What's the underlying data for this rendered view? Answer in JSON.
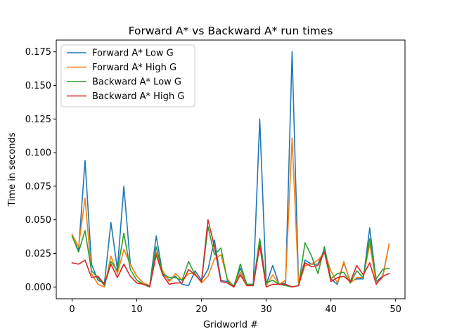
{
  "chart_data": {
    "type": "line",
    "title": "Forward A* vs Backward A* run times",
    "xlabel": "Gridworld #",
    "ylabel": "Time in seconds",
    "xlim": [
      -2.45,
      51.45
    ],
    "ylim": [
      -0.00875,
      0.18375
    ],
    "xticks": [
      0,
      10,
      20,
      30,
      40,
      50
    ],
    "xtick_labels": [
      "0",
      "10",
      "20",
      "30",
      "40",
      "50"
    ],
    "yticks": [
      0.0,
      0.025,
      0.05,
      0.075,
      0.1,
      0.125,
      0.15,
      0.175
    ],
    "ytick_labels": [
      "0.000",
      "0.025",
      "0.050",
      "0.075",
      "0.100",
      "0.125",
      "0.150",
      "0.175"
    ],
    "legend_position": "upper-left",
    "grid": false,
    "x": [
      0,
      1,
      2,
      3,
      4,
      5,
      6,
      7,
      8,
      9,
      10,
      11,
      12,
      13,
      14,
      15,
      16,
      17,
      18,
      19,
      20,
      21,
      22,
      23,
      24,
      25,
      26,
      27,
      28,
      29,
      30,
      31,
      32,
      33,
      34,
      35,
      36,
      37,
      38,
      39,
      40,
      41,
      42,
      43,
      44,
      45,
      46,
      47,
      48,
      49
    ],
    "series": [
      {
        "name": "Forward A* Low G",
        "color": "#1f77b4",
        "values": [
          0.038,
          0.027,
          0.094,
          0.017,
          0.005,
          0.003,
          0.048,
          0.013,
          0.075,
          0.017,
          0.008,
          0.003,
          0.001,
          0.038,
          0.01,
          0.005,
          0.008,
          0.002,
          0.001,
          0.012,
          0.005,
          0.013,
          0.035,
          0.005,
          0.004,
          0.001,
          0.014,
          0.002,
          0.002,
          0.125,
          0.002,
          0.016,
          0.002,
          0.003,
          0.175,
          0.002,
          0.02,
          0.017,
          0.017,
          0.028,
          0.006,
          0.002,
          0.018,
          0.004,
          0.006,
          0.006,
          0.044,
          0.004,
          0.008,
          0.032
        ]
      },
      {
        "name": "Forward A* High G",
        "color": "#ff7f0e",
        "values": [
          0.039,
          0.03,
          0.066,
          0.01,
          0.002,
          0.0,
          0.023,
          0.01,
          0.028,
          0.017,
          0.008,
          0.003,
          0.001,
          0.026,
          0.012,
          0.004,
          0.01,
          0.005,
          0.01,
          0.01,
          0.003,
          0.008,
          0.021,
          0.024,
          0.006,
          0.0,
          0.011,
          0.001,
          0.001,
          0.033,
          0.001,
          0.009,
          0.002,
          0.005,
          0.111,
          0.002,
          0.016,
          0.017,
          0.02,
          0.026,
          0.012,
          0.003,
          0.019,
          0.003,
          0.007,
          0.007,
          0.032,
          0.003,
          0.007,
          0.032
        ]
      },
      {
        "name": "Backward A* Low G",
        "color": "#2ca02c",
        "values": [
          0.038,
          0.026,
          0.042,
          0.012,
          0.007,
          0.001,
          0.019,
          0.012,
          0.04,
          0.013,
          0.005,
          0.002,
          0.001,
          0.03,
          0.01,
          0.007,
          0.007,
          0.005,
          0.019,
          0.009,
          0.004,
          0.045,
          0.024,
          0.029,
          0.005,
          0.0,
          0.017,
          0.002,
          0.002,
          0.036,
          0.003,
          0.005,
          0.002,
          0.001,
          0.0,
          0.001,
          0.033,
          0.023,
          0.01,
          0.03,
          0.006,
          0.01,
          0.011,
          0.003,
          0.012,
          0.007,
          0.036,
          0.006,
          0.013,
          0.014
        ]
      },
      {
        "name": "Backward A* High G",
        "color": "#d62728",
        "values": [
          0.018,
          0.017,
          0.02,
          0.007,
          0.008,
          0.002,
          0.017,
          0.007,
          0.017,
          0.008,
          0.003,
          0.002,
          0.0,
          0.024,
          0.009,
          0.002,
          0.003,
          0.003,
          0.013,
          0.009,
          0.004,
          0.05,
          0.03,
          0.004,
          0.003,
          0.0,
          0.009,
          0.001,
          0.001,
          0.031,
          0.0,
          0.002,
          0.002,
          0.002,
          0.0,
          0.001,
          0.018,
          0.015,
          0.016,
          0.026,
          0.004,
          0.007,
          0.008,
          0.004,
          0.016,
          0.009,
          0.018,
          0.002,
          0.008,
          0.01
        ]
      }
    ]
  }
}
